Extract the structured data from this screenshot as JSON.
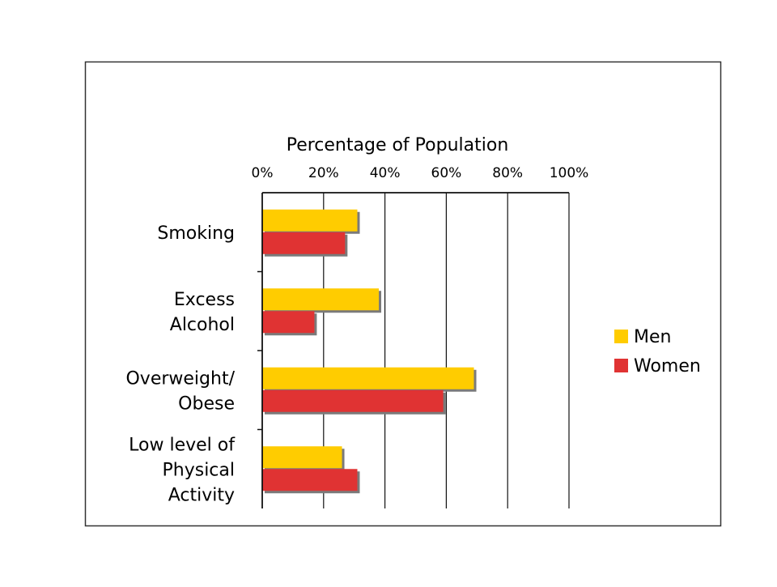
{
  "chart_data": {
    "type": "bar",
    "orientation": "horizontal",
    "title": "Percentage of Population",
    "xlabel": "",
    "ylabel": "",
    "xlim": [
      0,
      100
    ],
    "x_ticks": [
      "0%",
      "20%",
      "40%",
      "60%",
      "80%",
      "100%"
    ],
    "grid": true,
    "legend_position": "right",
    "categories": [
      [
        "Smoking"
      ],
      [
        "Excess",
        "Alcohol"
      ],
      [
        "Overweight/",
        "Obese"
      ],
      [
        "Low level of",
        "Physical",
        "Activity"
      ]
    ],
    "series": [
      {
        "name": "Men",
        "color": "#FFCC00",
        "values": [
          31,
          38,
          69,
          26
        ]
      },
      {
        "name": "Women",
        "color": "#E03333",
        "values": [
          27,
          17,
          59,
          31
        ]
      }
    ]
  }
}
